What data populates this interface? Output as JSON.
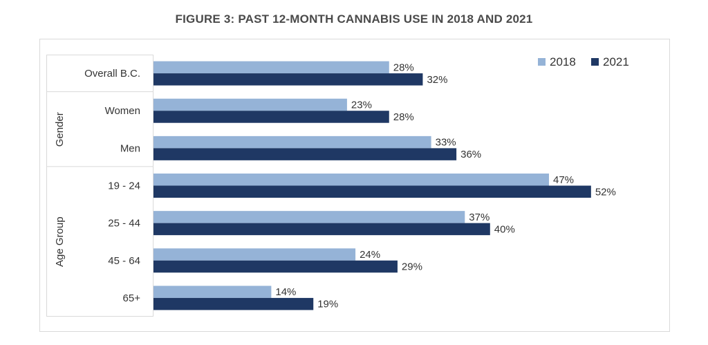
{
  "chart_data": {
    "type": "bar",
    "orientation": "horizontal",
    "title": "FIGURE 3: PAST 12-MONTH CANNABIS USE IN 2018 AND 2021",
    "categories": [
      "Overall B.C.",
      "Women",
      "Men",
      "19 - 24",
      "25 - 44",
      "45 - 64",
      "65+"
    ],
    "groups": [
      {
        "label": "",
        "categories": [
          "Overall B.C."
        ]
      },
      {
        "label": "Gender",
        "categories": [
          "Women",
          "Men"
        ]
      },
      {
        "label": "Age Group",
        "categories": [
          "19 - 24",
          "25 - 44",
          "45 - 64",
          "65+"
        ]
      }
    ],
    "series": [
      {
        "name": "2018",
        "color": "#95b3d7",
        "values": [
          28,
          23,
          33,
          47,
          37,
          24,
          14
        ]
      },
      {
        "name": "2021",
        "color": "#1f3864",
        "values": [
          32,
          28,
          36,
          52,
          40,
          29,
          19
        ]
      }
    ],
    "value_suffix": "%",
    "xlim": [
      0,
      60
    ],
    "grid": false,
    "legend_position": "top-right"
  }
}
